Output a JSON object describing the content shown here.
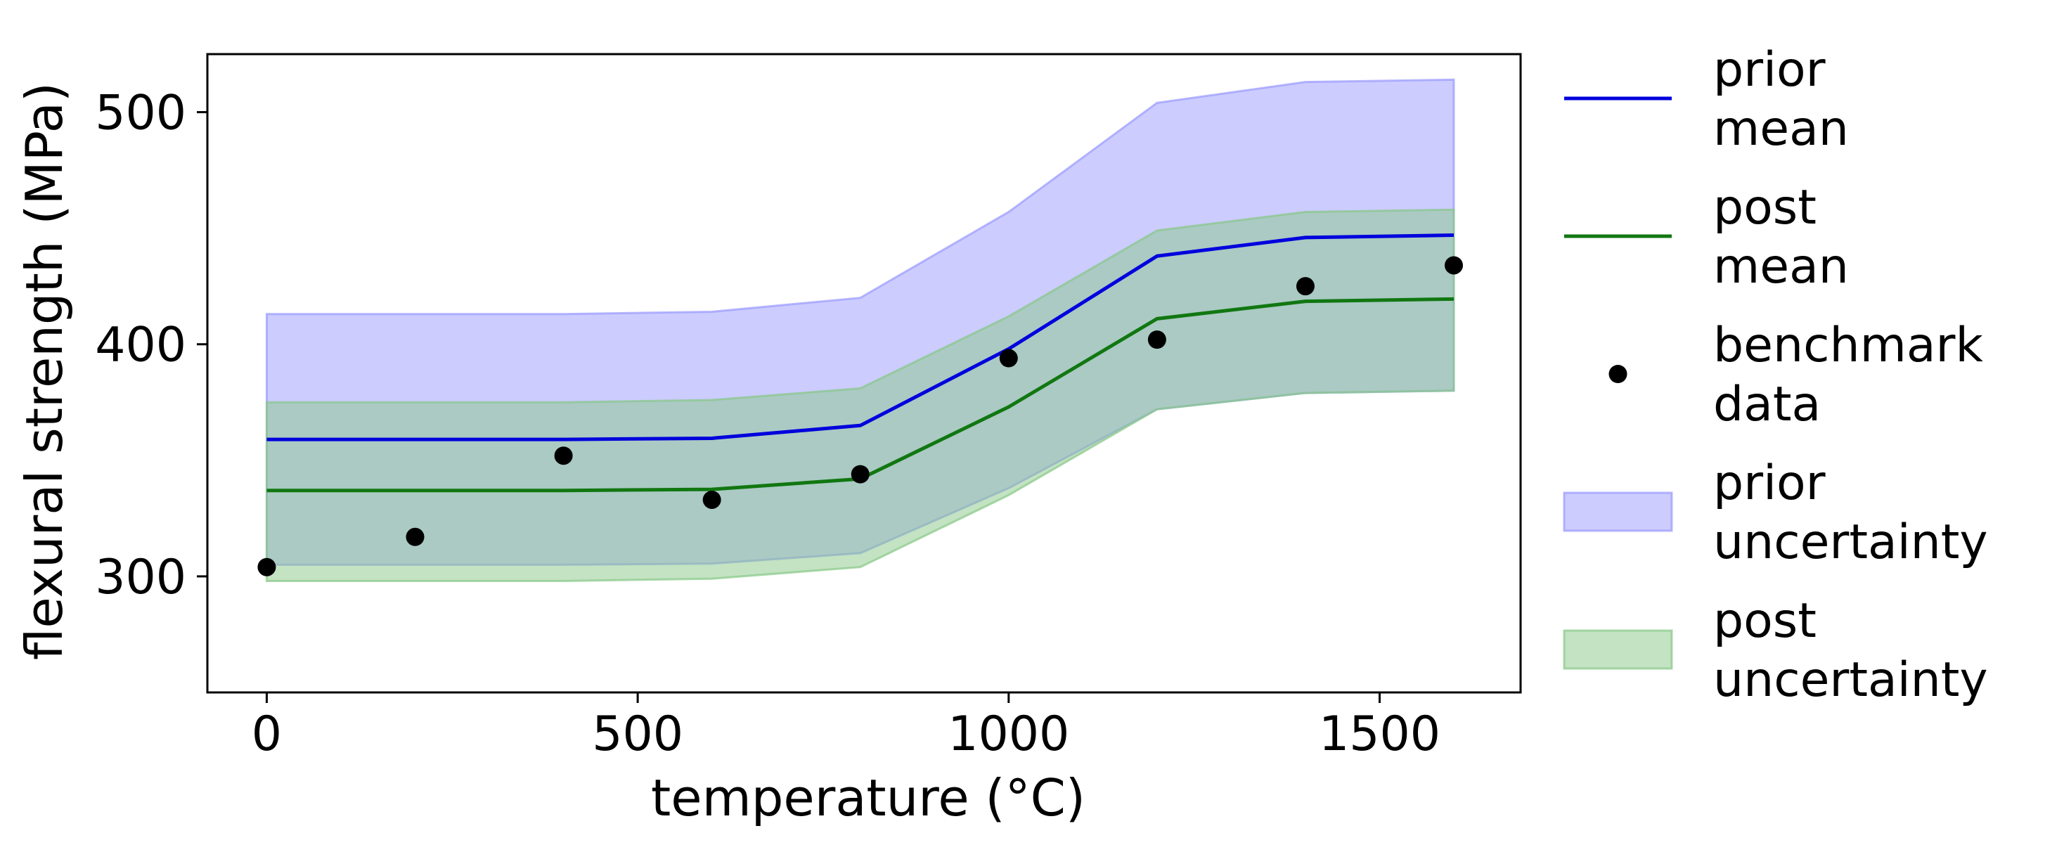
{
  "chart_data": {
    "type": "line",
    "xlabel": "temperature (°C)",
    "ylabel": "flexural strength (MPa)",
    "xlim": [
      -80,
      1690
    ],
    "ylim": [
      250,
      525
    ],
    "xticks": [
      0,
      500,
      1000,
      1500
    ],
    "yticks": [
      300,
      400,
      500
    ],
    "x": [
      0,
      200,
      400,
      600,
      800,
      1000,
      1200,
      1400,
      1600
    ],
    "series": [
      {
        "name": "prior\nmean",
        "kind": "line",
        "color": "#0000dd",
        "values": [
          359,
          359,
          359,
          359.5,
          365,
          398,
          438,
          446,
          447
        ]
      },
      {
        "name": "post\nmean",
        "kind": "line",
        "color": "#117711",
        "values": [
          337,
          337,
          337,
          337.5,
          342,
          373,
          411,
          418.5,
          419.5
        ]
      },
      {
        "name": "benchmark\ndata",
        "kind": "scatter",
        "color": "#000000",
        "x": [
          0,
          200,
          400,
          600,
          800,
          1000,
          1200,
          1400,
          1600
        ],
        "values": [
          304,
          317,
          352,
          333,
          344,
          394,
          402,
          425,
          434
        ]
      },
      {
        "name": "prior\nuncertainty",
        "kind": "band",
        "color": "#9999ff",
        "lower": [
          305,
          305,
          305,
          305.5,
          310,
          338,
          372,
          379,
          380
        ],
        "upper": [
          413,
          413,
          413,
          414,
          420,
          457,
          504,
          513,
          514
        ]
      },
      {
        "name": "post\nuncertainty",
        "kind": "band",
        "color": "#88c888",
        "lower": [
          298,
          298,
          298,
          299,
          304,
          335,
          372,
          379,
          380
        ],
        "upper": [
          375,
          375,
          375,
          376,
          381,
          412,
          449,
          457,
          458
        ]
      }
    ],
    "legend": "right-outside",
    "grid": false
  }
}
